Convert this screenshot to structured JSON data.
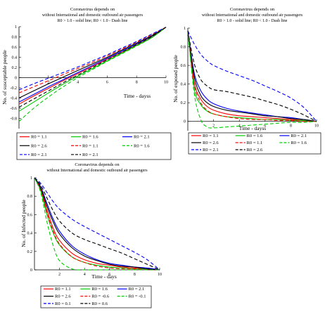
{
  "chart_data": [
    {
      "type": "line",
      "title": [
        "Coronavirus depends on",
        "without International and domestic outbound air passengers",
        "R0 > 1.0 - solid line; R0 < 1.0 - Dash line"
      ],
      "xlabel": "Time - dayss",
      "ylabel": "No. of susceptable people",
      "xlim": [
        0,
        10
      ],
      "ylim": [
        -1.0,
        1.0
      ],
      "xticks": [
        "2",
        "4",
        "6",
        "8",
        "10"
      ],
      "yticks": [
        "1",
        "0.8",
        "0.6",
        "0.4",
        "0.2",
        "0",
        "-0.2",
        "-0.4",
        "-0.6",
        "-0.8"
      ],
      "grid": false,
      "legend": [
        {
          "label": "R0 = 1.1",
          "color": "#ff0000",
          "dash": false
        },
        {
          "label": "R0 = 1.6",
          "color": "#00cc00",
          "dash": false
        },
        {
          "label": "R0 = 2.1",
          "color": "#0000ff",
          "dash": false
        },
        {
          "label": "R0 = 2.6",
          "color": "#000000",
          "dash": false
        },
        {
          "label": "R0 = 1.1",
          "color": "#ff0000",
          "dash": true
        },
        {
          "label": "R0 = 1.6",
          "color": "#00cc00",
          "dash": true
        },
        {
          "label": "R0 = 2.1",
          "color": "#0000ff",
          "dash": true
        },
        {
          "label": "R0 = 2.1",
          "color": "#000000",
          "dash": true
        }
      ],
      "x": [
        0,
        1,
        2,
        3,
        4,
        5,
        6,
        7,
        8,
        9,
        10
      ],
      "series": [
        {
          "color": "#ff0000",
          "dash": false,
          "values": [
            -0.52,
            -0.36,
            -0.21,
            -0.06,
            0.08,
            0.22,
            0.36,
            0.5,
            0.64,
            0.79,
            0.99
          ]
        },
        {
          "color": "#00cc00",
          "dash": false,
          "values": [
            -0.66,
            -0.48,
            -0.3,
            -0.13,
            0.03,
            0.18,
            0.33,
            0.48,
            0.63,
            0.78,
            0.99
          ]
        },
        {
          "color": "#0000ff",
          "dash": false,
          "values": [
            -0.48,
            -0.33,
            -0.18,
            -0.04,
            0.1,
            0.24,
            0.38,
            0.52,
            0.66,
            0.81,
            0.99
          ]
        },
        {
          "color": "#000000",
          "dash": false,
          "values": [
            -0.4,
            -0.26,
            -0.12,
            0.01,
            0.14,
            0.27,
            0.4,
            0.54,
            0.68,
            0.82,
            0.99
          ]
        },
        {
          "color": "#ff0000",
          "dash": true,
          "values": [
            -0.3,
            -0.18,
            -0.06,
            0.06,
            0.18,
            0.3,
            0.43,
            0.56,
            0.7,
            0.84,
            0.99
          ]
        },
        {
          "color": "#00cc00",
          "dash": true,
          "values": [
            -0.86,
            -0.6,
            -0.38,
            -0.18,
            0.0,
            0.16,
            0.32,
            0.47,
            0.62,
            0.78,
            0.99
          ]
        },
        {
          "color": "#0000ff",
          "dash": true,
          "values": [
            -0.24,
            -0.12,
            -0.01,
            0.1,
            0.21,
            0.33,
            0.45,
            0.58,
            0.71,
            0.85,
            0.99
          ]
        },
        {
          "color": "#000000",
          "dash": true,
          "values": [
            -0.58,
            -0.42,
            -0.26,
            -0.1,
            0.05,
            0.2,
            0.35,
            0.5,
            0.65,
            0.8,
            0.99
          ]
        }
      ]
    },
    {
      "type": "line",
      "title": [
        "Coronavirus depends on",
        "without International and domestic outbound air passengers",
        "R0 > 1.0 - solid line; R0 < 1.0 - Dash line"
      ],
      "xlabel": "Time - dayss",
      "ylabel": "No. of exposed people",
      "xlim": [
        0,
        10
      ],
      "ylim": [
        -0.1,
        1.0
      ],
      "xticks": [
        "2",
        "4",
        "6",
        "8",
        "10"
      ],
      "yticks": [
        "1",
        "0.8",
        "0.6",
        "0.4",
        "0.2",
        "0"
      ],
      "grid": false,
      "legend": [
        {
          "label": "R0 = 1.1",
          "color": "#ff0000",
          "dash": false
        },
        {
          "label": "R0 = 1.6",
          "color": "#00cc00",
          "dash": false
        },
        {
          "label": "R0 = 2.1",
          "color": "#0000ff",
          "dash": false
        },
        {
          "label": "R0 = 2.6",
          "color": "#000000",
          "dash": false
        },
        {
          "label": "R0 = 1.1",
          "color": "#ff0000",
          "dash": true
        },
        {
          "label": "R0 = 1.6",
          "color": "#00cc00",
          "dash": true
        },
        {
          "label": "R0 = 2.1",
          "color": "#0000ff",
          "dash": true
        },
        {
          "label": "R0 = 2.6",
          "color": "#000000",
          "dash": true
        }
      ],
      "x": [
        0,
        0.5,
        1,
        1.5,
        2,
        3,
        4,
        5,
        6,
        7,
        8,
        9,
        10
      ],
      "series": [
        {
          "color": "#ff0000",
          "dash": false,
          "values": [
            0.97,
            0.42,
            0.24,
            0.16,
            0.12,
            0.08,
            0.06,
            0.05,
            0.04,
            0.03,
            0.02,
            0.01,
            0.0
          ]
        },
        {
          "color": "#00cc00",
          "dash": false,
          "values": [
            0.97,
            0.35,
            0.18,
            0.11,
            0.08,
            0.05,
            0.04,
            0.03,
            0.02,
            0.02,
            0.01,
            0.01,
            0.0
          ]
        },
        {
          "color": "#0000ff",
          "dash": false,
          "values": [
            0.97,
            0.52,
            0.33,
            0.24,
            0.19,
            0.14,
            0.11,
            0.09,
            0.07,
            0.05,
            0.04,
            0.02,
            0.0
          ]
        },
        {
          "color": "#000000",
          "dash": false,
          "values": [
            0.97,
            0.48,
            0.28,
            0.2,
            0.16,
            0.12,
            0.1,
            0.08,
            0.06,
            0.05,
            0.03,
            0.02,
            0.0
          ]
        },
        {
          "color": "#ff0000",
          "dash": true,
          "values": [
            0.97,
            0.4,
            0.2,
            0.12,
            0.08,
            0.05,
            0.03,
            0.02,
            0.02,
            0.01,
            0.01,
            0.0,
            0.0
          ]
        },
        {
          "color": "#00cc00",
          "dash": true,
          "values": [
            0.97,
            0.3,
            0.02,
            -0.06,
            -0.07,
            -0.06,
            -0.05,
            -0.04,
            -0.03,
            -0.02,
            -0.01,
            -0.01,
            0.0
          ]
        },
        {
          "color": "#0000ff",
          "dash": true,
          "values": [
            0.97,
            0.83,
            0.72,
            0.65,
            0.6,
            0.54,
            0.49,
            0.44,
            0.38,
            0.32,
            0.25,
            0.15,
            0.0
          ]
        },
        {
          "color": "#000000",
          "dash": true,
          "values": [
            0.97,
            0.62,
            0.45,
            0.38,
            0.34,
            0.32,
            0.29,
            0.26,
            0.22,
            0.18,
            0.13,
            0.07,
            0.0
          ]
        }
      ]
    },
    {
      "type": "line",
      "title": [
        "Coronavirus depends on",
        "without International and domestic outbound air passengers"
      ],
      "xlabel": "Time - days",
      "ylabel": "No. of Infected people",
      "xlim": [
        0,
        10
      ],
      "ylim": [
        0,
        1.0
      ],
      "xticks": [
        "2",
        "4",
        "6",
        "8",
        "10"
      ],
      "yticks": [
        "1",
        "0.8",
        "0.6",
        "0.4",
        "0.2",
        "0"
      ],
      "grid": false,
      "legend": [
        {
          "label": "R0 = 1.1",
          "color": "#ff0000",
          "dash": false
        },
        {
          "label": "R0 = 1.6",
          "color": "#00cc00",
          "dash": false
        },
        {
          "label": "R0 = 2.1",
          "color": "#0000ff",
          "dash": false
        },
        {
          "label": "R0 = 2.6",
          "color": "#000000",
          "dash": false
        },
        {
          "label": "R0 = -0.6",
          "color": "#ff0000",
          "dash": true
        },
        {
          "label": "R0 = -0.1",
          "color": "#00cc00",
          "dash": true
        },
        {
          "label": "R0 = 0.1",
          "color": "#0000ff",
          "dash": true
        },
        {
          "label": "R0 = 0.6",
          "color": "#000000",
          "dash": true
        }
      ],
      "x": [
        0,
        0.5,
        1,
        1.5,
        2,
        3,
        4,
        5,
        6,
        7,
        8,
        9,
        10
      ],
      "series": [
        {
          "color": "#ff0000",
          "dash": false,
          "values": [
            1.0,
            0.88,
            0.65,
            0.45,
            0.32,
            0.18,
            0.11,
            0.07,
            0.05,
            0.03,
            0.02,
            0.01,
            0.0
          ]
        },
        {
          "color": "#00cc00",
          "dash": false,
          "values": [
            1.0,
            0.86,
            0.6,
            0.4,
            0.27,
            0.14,
            0.08,
            0.05,
            0.03,
            0.02,
            0.01,
            0.01,
            0.0
          ]
        },
        {
          "color": "#0000ff",
          "dash": false,
          "values": [
            1.0,
            0.9,
            0.72,
            0.55,
            0.42,
            0.26,
            0.17,
            0.11,
            0.07,
            0.05,
            0.03,
            0.02,
            0.0
          ]
        },
        {
          "color": "#000000",
          "dash": false,
          "values": [
            1.0,
            0.89,
            0.69,
            0.52,
            0.39,
            0.24,
            0.15,
            0.1,
            0.06,
            0.04,
            0.03,
            0.01,
            0.0
          ]
        },
        {
          "color": "#ff0000",
          "dash": true,
          "values": [
            1.0,
            0.87,
            0.62,
            0.42,
            0.28,
            0.14,
            0.08,
            0.04,
            0.02,
            0.01,
            0.01,
            0.0,
            0.0
          ]
        },
        {
          "color": "#00cc00",
          "dash": true,
          "values": [
            1.0,
            0.84,
            0.52,
            0.26,
            0.1,
            0.01,
            0.0,
            0.0,
            0.0,
            0.0,
            0.0,
            0.0,
            0.0
          ]
        },
        {
          "color": "#0000ff",
          "dash": true,
          "values": [
            1.0,
            0.94,
            0.84,
            0.74,
            0.66,
            0.55,
            0.47,
            0.4,
            0.33,
            0.26,
            0.19,
            0.11,
            0.0
          ]
        },
        {
          "color": "#000000",
          "dash": true,
          "values": [
            1.0,
            0.92,
            0.78,
            0.64,
            0.53,
            0.4,
            0.33,
            0.28,
            0.23,
            0.18,
            0.12,
            0.06,
            0.0
          ]
        }
      ]
    }
  ]
}
